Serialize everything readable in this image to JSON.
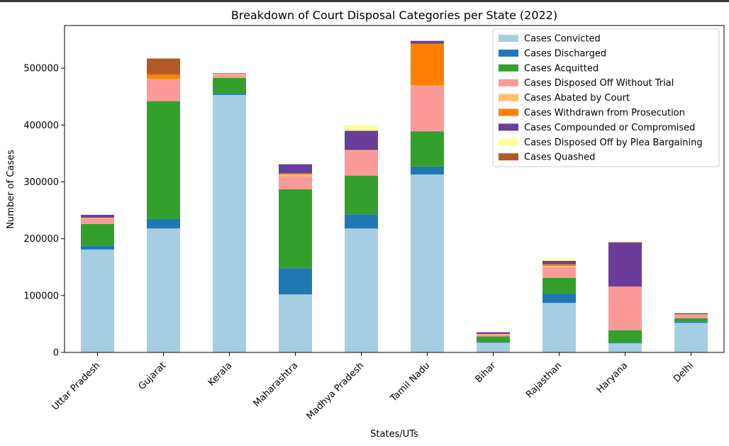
{
  "chart_data": {
    "type": "bar",
    "stacked": true,
    "title": "Breakdown of Court Disposal Categories per State (2022)",
    "xlabel": "States/UTs",
    "ylabel": "Number of Cases",
    "ylim": [
      0,
      575000
    ],
    "yticks": [
      0,
      100000,
      200000,
      300000,
      400000,
      500000
    ],
    "grid": false,
    "legend_position": "top-right",
    "categories": [
      "Uttar Pradesh",
      "Gujarat",
      "Kerala",
      "Maharashtra",
      "Madhya Pradesh",
      "Tamil Nadu",
      "Bihar",
      "Rajasthan",
      "Haryana",
      "Delhi"
    ],
    "series": [
      {
        "name": "Cases Convicted",
        "color": "#a6cee3",
        "values": [
          181000,
          218000,
          453000,
          102000,
          218000,
          313000,
          17000,
          87000,
          16000,
          52000
        ]
      },
      {
        "name": "Cases Discharged",
        "color": "#1f78b4",
        "values": [
          7000,
          17000,
          3000,
          46000,
          25000,
          14000,
          1000,
          16000,
          1000,
          2000
        ]
      },
      {
        "name": "Cases Acquitted",
        "color": "#33a02c",
        "values": [
          38000,
          207000,
          27000,
          139000,
          68000,
          62000,
          10000,
          28000,
          22000,
          6000
        ]
      },
      {
        "name": "Cases Disposed Off Without Trial",
        "color": "#fb9a99",
        "values": [
          10000,
          38000,
          5000,
          23000,
          44000,
          81000,
          4000,
          19000,
          77000,
          6000
        ]
      },
      {
        "name": "Cases Abated by Court",
        "color": "#fdbf6f",
        "values": [
          1000,
          1000,
          2000,
          3000,
          1000,
          0,
          500,
          2000,
          0,
          1000
        ]
      },
      {
        "name": "Cases Withdrawn from Prosecution",
        "color": "#ff7f00",
        "values": [
          0,
          8000,
          0,
          2000,
          0,
          73000,
          0,
          3000,
          0,
          0
        ]
      },
      {
        "name": "Cases Compounded or Compromised",
        "color": "#6a3d9a",
        "values": [
          5000,
          0,
          1000,
          16000,
          34000,
          5000,
          3000,
          6000,
          77000,
          2000
        ]
      },
      {
        "name": "Cases Disposed Off by Plea Bargaining",
        "color": "#ffff99",
        "values": [
          0,
          0,
          0,
          0,
          10000,
          0,
          0,
          3000,
          0,
          1000
        ]
      },
      {
        "name": "Cases Quashed",
        "color": "#b15928",
        "values": [
          0,
          28000,
          0,
          0,
          0,
          0,
          0,
          0,
          1000,
          0
        ]
      }
    ]
  }
}
